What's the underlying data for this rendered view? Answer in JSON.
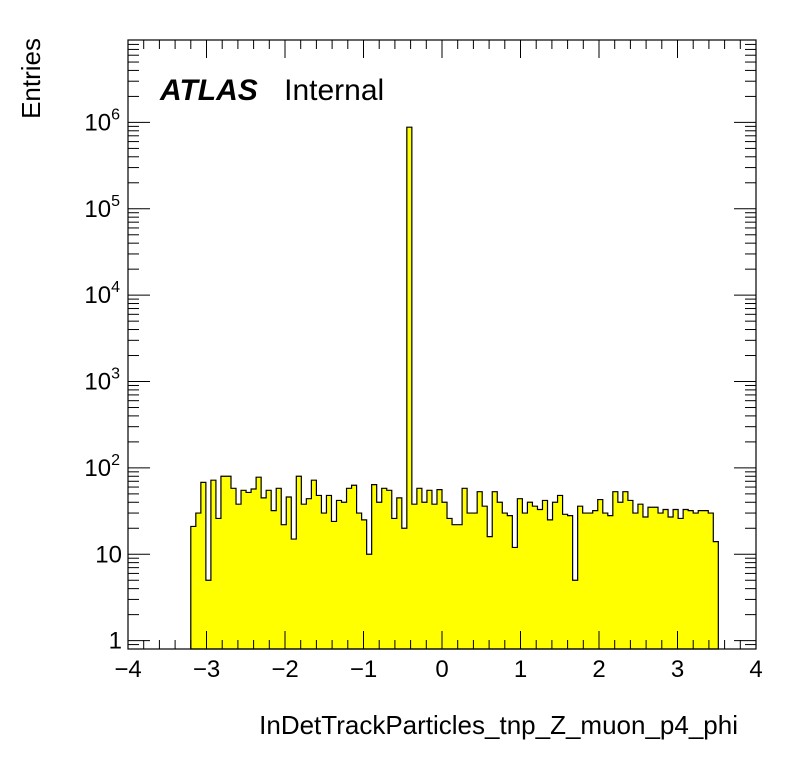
{
  "chart_data": {
    "type": "bar",
    "title": "",
    "xlabel": "InDetTrackParticles_tnp_Z_muon_p4_phi",
    "ylabel": "Entries",
    "xlim": [
      -4,
      4
    ],
    "ylim": [
      0.8,
      9000000
    ],
    "yscale": "log",
    "grid": false,
    "legend": "none",
    "bar_color": "#ffff00",
    "edge_color": "#000000",
    "annotation": {
      "bold": "ATLAS",
      "plain": "Internal"
    },
    "x_ticks": [
      "−4",
      "−3",
      "−2",
      "−1",
      "0",
      "1",
      "2",
      "3",
      "4"
    ],
    "y_ticks": [
      {
        "value": 1,
        "base": "1",
        "exp": ""
      },
      {
        "value": 10,
        "base": "10",
        "exp": ""
      },
      {
        "value": 100,
        "base": "10",
        "exp": "2"
      },
      {
        "value": 1000,
        "base": "10",
        "exp": "3"
      },
      {
        "value": 10000,
        "base": "10",
        "exp": "4"
      },
      {
        "value": 100000,
        "base": "10",
        "exp": "5"
      },
      {
        "value": 1000000,
        "base": "10",
        "exp": "6"
      }
    ],
    "bin_start": -3.2,
    "bin_width": 0.064,
    "values": [
      21,
      30,
      68,
      5,
      72,
      26,
      80,
      80,
      58,
      38,
      55,
      52,
      57,
      78,
      45,
      55,
      32,
      58,
      22,
      46,
      15,
      80,
      38,
      44,
      72,
      48,
      30,
      48,
      24,
      42,
      40,
      58,
      63,
      30,
      25,
      10,
      64,
      40,
      58,
      55,
      26,
      45,
      20,
      880000,
      38,
      58,
      40,
      55,
      38,
      56,
      40,
      26,
      22,
      22,
      58,
      30,
      30,
      53,
      36,
      16,
      53,
      40,
      30,
      28,
      12,
      44,
      30,
      40,
      36,
      33,
      42,
      25,
      40,
      48,
      29,
      28,
      5,
      36,
      30,
      30,
      32,
      43,
      30,
      28,
      53,
      40,
      53,
      42,
      30,
      38,
      27,
      35,
      35,
      30,
      33,
      27,
      33,
      26,
      33,
      32,
      30,
      32,
      32,
      30,
      14
    ]
  }
}
